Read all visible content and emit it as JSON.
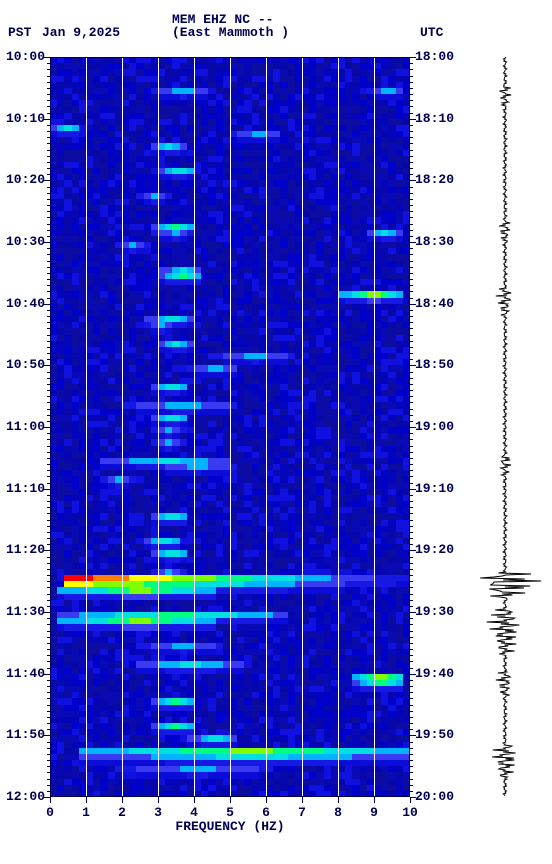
{
  "header": {
    "tz_left": "PST",
    "date": "Jan 9,2025",
    "station": "MEM EHZ NC --",
    "location": "(East Mammoth )",
    "tz_right": "UTC"
  },
  "axis": {
    "xlabel": "FREQUENCY (HZ)",
    "x_ticks": [
      0,
      1,
      2,
      3,
      4,
      5,
      6,
      7,
      8,
      9,
      10
    ],
    "y_left_start_hour": 10,
    "y_left_start_min": 0,
    "y_right_start_hour": 18,
    "y_right_start_min": 0,
    "total_minutes": 120,
    "major_step_min": 10,
    "minor_step_min": 1
  },
  "spectrogram": {
    "nx": 50,
    "ny": 120,
    "base_color": "#0808aa",
    "noise_colors": [
      "#0000cc",
      "#0404bb",
      "#0808aa",
      "#0c0ca0",
      "#0a0ab4",
      "#1010e0"
    ],
    "palette": [
      "#0000cc",
      "#0c0cd8",
      "#1818e4",
      "#3a3af0",
      "#00b4ff",
      "#00e0e0",
      "#00ff80",
      "#80ff00",
      "#ffff00",
      "#ff8000",
      "#ff0000"
    ],
    "events": [
      {
        "t": 5,
        "f0": 3.0,
        "fw": 1.2,
        "intensity": 4
      },
      {
        "t": 5,
        "f0": 9.0,
        "fw": 0.6,
        "intensity": 4
      },
      {
        "t": 11,
        "f0": 0.1,
        "fw": 0.4,
        "intensity": 5
      },
      {
        "t": 12,
        "f0": 5.2,
        "fw": 1.0,
        "intensity": 4
      },
      {
        "t": 14,
        "f0": 3.0,
        "fw": 0.5,
        "intensity": 5
      },
      {
        "t": 18,
        "f0": 3.2,
        "fw": 0.6,
        "intensity": 5
      },
      {
        "t": 22,
        "f0": 2.5,
        "fw": 0.5,
        "intensity": 4
      },
      {
        "t": 27,
        "f0": 3.0,
        "fw": 0.7,
        "intensity": 6
      },
      {
        "t": 28,
        "f0": 3.0,
        "fw": 0.7,
        "intensity": 4
      },
      {
        "t": 28,
        "f0": 9.0,
        "fw": 0.5,
        "intensity": 5
      },
      {
        "t": 30,
        "f0": 2.0,
        "fw": 0.5,
        "intensity": 4
      },
      {
        "t": 34,
        "f0": 3.2,
        "fw": 0.8,
        "intensity": 5
      },
      {
        "t": 35,
        "f0": 3.2,
        "fw": 0.8,
        "intensity": 6
      },
      {
        "t": 38,
        "f0": 8.2,
        "fw": 1.4,
        "intensity": 7
      },
      {
        "t": 42,
        "f0": 2.8,
        "fw": 1.0,
        "intensity": 5
      },
      {
        "t": 43,
        "f0": 2.8,
        "fw": 0.5,
        "intensity": 4
      },
      {
        "t": 46,
        "f0": 3.2,
        "fw": 0.5,
        "intensity": 5
      },
      {
        "t": 48,
        "f0": 4.5,
        "fw": 2.0,
        "intensity": 4
      },
      {
        "t": 50,
        "f0": 4.0,
        "fw": 1.0,
        "intensity": 4
      },
      {
        "t": 53,
        "f0": 3.0,
        "fw": 0.6,
        "intensity": 5
      },
      {
        "t": 56,
        "f0": 2.2,
        "fw": 2.8,
        "intensity": 4
      },
      {
        "t": 58,
        "f0": 3.0,
        "fw": 0.6,
        "intensity": 5
      },
      {
        "t": 60,
        "f0": 3.0,
        "fw": 0.5,
        "intensity": 4
      },
      {
        "t": 62,
        "f0": 3.0,
        "fw": 0.5,
        "intensity": 4
      },
      {
        "t": 65,
        "f0": 1.5,
        "fw": 3.2,
        "intensity": 5
      },
      {
        "t": 66,
        "f0": 3.0,
        "fw": 2.0,
        "intensity": 4
      },
      {
        "t": 68,
        "f0": 1.5,
        "fw": 0.5,
        "intensity": 4
      },
      {
        "t": 74,
        "f0": 3.0,
        "fw": 0.6,
        "intensity": 6
      },
      {
        "t": 78,
        "f0": 2.8,
        "fw": 0.6,
        "intensity": 6
      },
      {
        "t": 80,
        "f0": 3.0,
        "fw": 0.6,
        "intensity": 5
      },
      {
        "t": 83,
        "f0": 3.0,
        "fw": 0.5,
        "intensity": 4
      },
      {
        "t": 84,
        "f0": 0.5,
        "fw": 9.5,
        "intensity": 10,
        "strong_low": true
      },
      {
        "t": 85,
        "f0": 0.5,
        "fw": 9.5,
        "intensity": 8,
        "strong_low": true
      },
      {
        "t": 86,
        "f0": 0.4,
        "fw": 4.0,
        "intensity": 7
      },
      {
        "t": 90,
        "f0": 0.4,
        "fw": 6.0,
        "intensity": 6
      },
      {
        "t": 91,
        "f0": 0.4,
        "fw": 4.0,
        "intensity": 7
      },
      {
        "t": 95,
        "f0": 2.5,
        "fw": 2.0,
        "intensity": 4
      },
      {
        "t": 98,
        "f0": 2.5,
        "fw": 2.5,
        "intensity": 5
      },
      {
        "t": 100,
        "f0": 8.5,
        "fw": 1.0,
        "intensity": 7
      },
      {
        "t": 101,
        "f0": 8.5,
        "fw": 1.0,
        "intensity": 6
      },
      {
        "t": 104,
        "f0": 3.0,
        "fw": 0.8,
        "intensity": 6
      },
      {
        "t": 108,
        "f0": 3.0,
        "fw": 0.8,
        "intensity": 6
      },
      {
        "t": 110,
        "f0": 4.0,
        "fw": 1.0,
        "intensity": 5
      },
      {
        "t": 112,
        "f0": 1.0,
        "fw": 9.0,
        "intensity": 7
      },
      {
        "t": 113,
        "f0": 1.0,
        "fw": 9.0,
        "intensity": 5
      },
      {
        "t": 115,
        "f0": 2.0,
        "fw": 4.0,
        "intensity": 4
      }
    ]
  },
  "waveform": {
    "base_amplitude": 2,
    "events": [
      {
        "t": 5,
        "amp": 6,
        "dur": 2
      },
      {
        "t": 27,
        "amp": 6,
        "dur": 2
      },
      {
        "t": 38,
        "amp": 8,
        "dur": 3
      },
      {
        "t": 65,
        "amp": 6,
        "dur": 2
      },
      {
        "t": 84,
        "amp": 40,
        "dur": 3
      },
      {
        "t": 90,
        "amp": 18,
        "dur": 6
      },
      {
        "t": 100,
        "amp": 8,
        "dur": 3
      },
      {
        "t": 112,
        "amp": 14,
        "dur": 4
      }
    ]
  },
  "style": {
    "text_color": "#000050",
    "bg": "#ffffff",
    "font": "Courier New",
    "font_size_pt": 10,
    "plot_border_color": "#000050"
  }
}
